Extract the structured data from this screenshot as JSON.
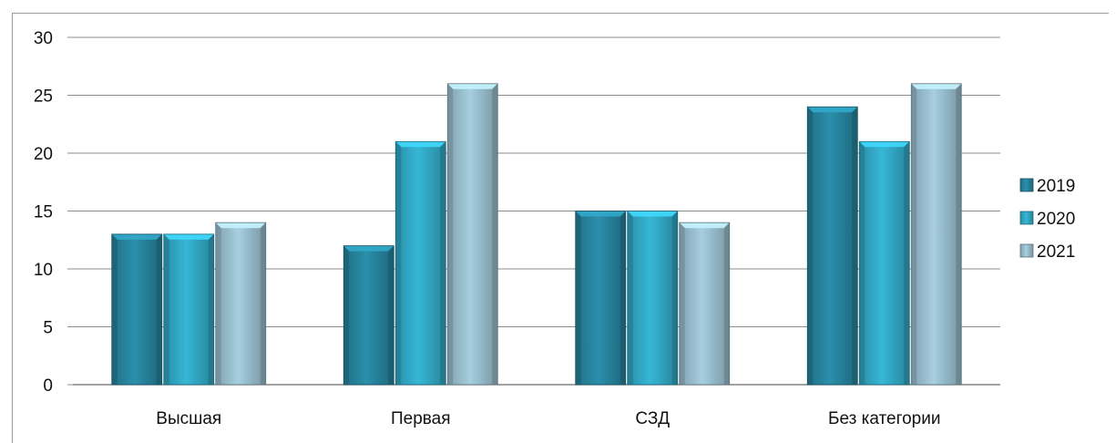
{
  "chart_data": {
    "type": "bar",
    "categories": [
      "Высшая",
      "Первая",
      "СЗД",
      "Без категории"
    ],
    "series": [
      {
        "name": "2019",
        "values": [
          13,
          12,
          15,
          24
        ],
        "color": "#2a8fab"
      },
      {
        "name": "2020",
        "values": [
          13,
          21,
          15,
          21
        ],
        "color": "#36b7d6"
      },
      {
        "name": "2021",
        "values": [
          14,
          26,
          14,
          26
        ],
        "color": "#a6cfe0"
      }
    ],
    "yticks": [
      "0",
      "5",
      "10",
      "15",
      "20",
      "25",
      "30"
    ],
    "ylim": [
      0,
      30
    ],
    "grid": true,
    "legend": "right"
  }
}
